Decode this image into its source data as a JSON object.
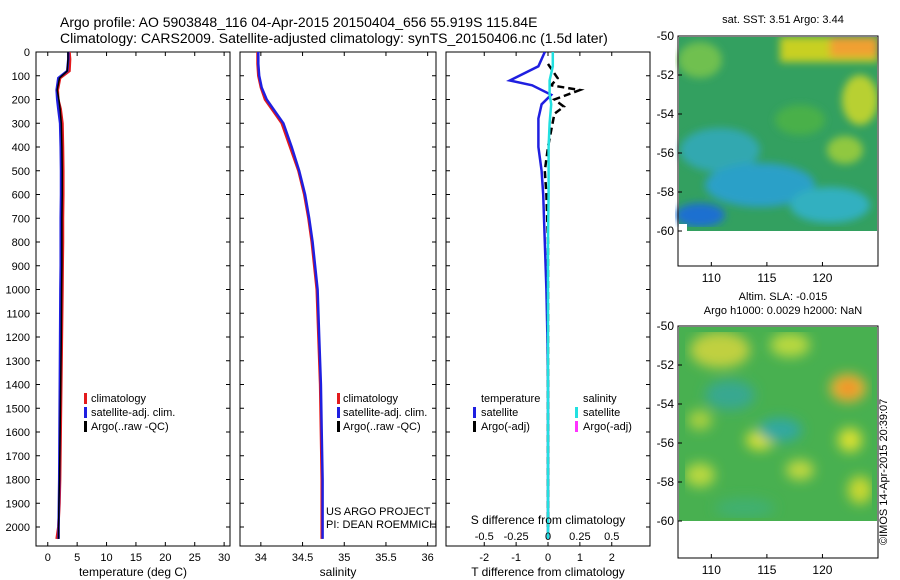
{
  "header": {
    "line1": "Argo profile: AO 5903848_116 04-Apr-2015 20150404_656 55.919S 115.84E",
    "line2": "Climatology: CARS2009. Satellite-adjusted climatology: synTS_20150406.nc (1.5d later)"
  },
  "credit": "©IMOS 14-Apr-2015 20:39:07",
  "project": {
    "line1": "US ARGO PROJECT",
    "line2": "PI: DEAN ROEMMICH"
  },
  "map_labels": {
    "sst": "sat. SST: 3.51  Argo: 3.44",
    "sla": "Altim. SLA: -0.015",
    "height": "Argo h1000: 0.0029 h2000: NaN"
  },
  "colors": {
    "clim": "#e31a1c",
    "sat": "#1f1fe0",
    "argo": "#000000",
    "sat_sal": "#22e0e0",
    "argo_sal": "#ff33ff"
  },
  "chart_data": [
    {
      "type": "line",
      "xlabel": "temperature (deg C)",
      "xlim": [
        -2,
        31
      ],
      "xticks": [
        0,
        5,
        10,
        15,
        20,
        25,
        30
      ],
      "ylim": [
        2080,
        0
      ],
      "yticks": [
        0,
        100,
        200,
        300,
        400,
        500,
        600,
        700,
        800,
        900,
        1000,
        1100,
        1200,
        1300,
        1400,
        1500,
        1600,
        1700,
        1800,
        1900,
        2000
      ],
      "legend": [
        "climatology",
        "satellite-adj. clim.",
        "Argo(..raw -QC)"
      ],
      "series": [
        {
          "name": "climatology",
          "color": "#e31a1c",
          "x": [
            3.7,
            3.8,
            3.7,
            2.1,
            1.7,
            1.8,
            2.2,
            2.5,
            2.6,
            2.65,
            2.65,
            2.6,
            2.6,
            2.55,
            2.5,
            2.4,
            2.3,
            2.2,
            2.1,
            2.0,
            1.8,
            1.5
          ],
          "y": [
            0,
            30,
            80,
            110,
            160,
            200,
            240,
            300,
            400,
            500,
            600,
            700,
            800,
            900,
            1000,
            1200,
            1400,
            1600,
            1800,
            1900,
            2000,
            2050
          ]
        },
        {
          "name": "satellite-adj. clim.",
          "color": "#1f1fe0",
          "x": [
            3.5,
            3.5,
            3.3,
            1.8,
            1.5,
            1.6,
            1.8,
            2.1,
            2.2,
            2.25,
            2.25,
            2.2,
            2.2,
            2.2,
            2.15,
            2.1,
            2.05,
            2.0,
            1.95,
            1.9,
            1.85,
            1.85
          ],
          "y": [
            0,
            30,
            80,
            110,
            160,
            200,
            240,
            300,
            400,
            500,
            600,
            700,
            800,
            900,
            1000,
            1200,
            1400,
            1600,
            1800,
            1900,
            2000,
            2050
          ]
        },
        {
          "name": "Argo",
          "color": "#000000",
          "x": [
            3.44,
            3.44,
            3.3,
            2.0,
            1.6,
            1.9,
            2.1,
            2.3,
            2.4,
            2.45,
            2.45,
            2.4,
            2.4,
            2.4,
            2.35,
            2.3,
            2.2,
            2.1,
            2.0,
            1.9,
            1.85,
            1.85
          ],
          "y": [
            0,
            30,
            80,
            110,
            160,
            200,
            240,
            300,
            400,
            500,
            600,
            700,
            800,
            900,
            1000,
            1200,
            1400,
            1600,
            1800,
            1900,
            2000,
            2050
          ]
        }
      ]
    },
    {
      "type": "line",
      "xlabel": "salinity",
      "xlim": [
        33.75,
        36.1
      ],
      "xticks": [
        34,
        34.5,
        35,
        35.5,
        36
      ],
      "xticklabels": [
        "34",
        "34.5",
        "35",
        "35.5",
        "36"
      ],
      "ylim": [
        2080,
        0
      ],
      "legend": [
        "climatology",
        "satellite-adj. clim.",
        "Argo(..raw -QC)"
      ],
      "series": [
        {
          "name": "climatology",
          "color": "#e31a1c",
          "x": [
            33.96,
            33.96,
            33.97,
            34.0,
            34.05,
            34.15,
            34.25,
            34.35,
            34.45,
            34.52,
            34.57,
            34.61,
            34.64,
            34.67,
            34.69,
            34.71,
            34.72,
            34.73,
            34.73,
            34.73,
            34.73
          ],
          "y": [
            0,
            50,
            100,
            150,
            200,
            250,
            300,
            400,
            500,
            600,
            700,
            800,
            900,
            1000,
            1200,
            1400,
            1600,
            1800,
            1900,
            2000,
            2050
          ]
        },
        {
          "name": "satellite-adj. clim.",
          "color": "#1f1fe0",
          "x": [
            33.97,
            33.97,
            33.98,
            34.01,
            34.07,
            34.17,
            34.27,
            34.37,
            34.46,
            34.53,
            34.58,
            34.62,
            34.65,
            34.68,
            34.7,
            34.72,
            34.73,
            34.74,
            34.74,
            34.74,
            34.74
          ],
          "y": [
            0,
            50,
            100,
            150,
            200,
            250,
            300,
            400,
            500,
            600,
            700,
            800,
            900,
            1000,
            1200,
            1400,
            1600,
            1800,
            1900,
            2000,
            2050
          ]
        }
      ]
    },
    {
      "type": "line",
      "xlabel": "T difference from climatology",
      "xlabel_top": "S difference from climatology",
      "xlim": [
        -3.2,
        3.2
      ],
      "xticks": [
        -2,
        -1,
        0,
        1,
        2
      ],
      "xticks_top": [
        -0.5,
        -0.25,
        0,
        0.25,
        0.5
      ],
      "ylim": [
        2080,
        0
      ],
      "legend_temperature": {
        "title": "temperature",
        "sat": "satellite",
        "argo": "Argo(-adj)"
      },
      "legend_salinity": {
        "title": "salinity",
        "sat": "satellite",
        "argo": "Argo(-adj)"
      },
      "series": [
        {
          "name": "T satellite",
          "color": "#1f1fe0",
          "x": [
            -0.1,
            -0.3,
            -1.2,
            -0.5,
            0.1,
            -0.2,
            -0.3,
            -0.3,
            -0.2,
            -0.15,
            -0.1,
            -0.05,
            -0.02,
            0.0,
            0.0,
            0.0,
            0.0,
            0.0,
            0.0
          ],
          "y": [
            0,
            60,
            120,
            140,
            180,
            220,
            280,
            400,
            500,
            600,
            800,
            1000,
            1200,
            1400,
            1600,
            1800,
            1900,
            2000,
            2050
          ]
        },
        {
          "name": "T Argo",
          "color": "#000000",
          "x": [
            0,
            0.3,
            0.1,
            1.0,
            0.2,
            0.5,
            0.2,
            0.0,
            -0.1,
            -0.05,
            0.0,
            0.0,
            0.0,
            0.0,
            0.0
          ],
          "y": [
            50,
            110,
            140,
            160,
            200,
            230,
            260,
            400,
            500,
            600,
            800,
            1000,
            1400,
            1800,
            2000
          ]
        },
        {
          "name": "S satellite",
          "color": "#22e0e0",
          "x": [
            0.15,
            0.15,
            0.05,
            0.05,
            0.1,
            0.05,
            0.02,
            0.02,
            0.0,
            0.0,
            0.0,
            0.0,
            0.0,
            0.0
          ],
          "y": [
            0,
            60,
            120,
            180,
            220,
            300,
            400,
            600,
            800,
            1000,
            1400,
            1800,
            2000,
            2050
          ]
        }
      ]
    },
    {
      "type": "heatmap",
      "title": "sat. SST: 3.51  Argo: 3.44",
      "xlim": [
        107,
        125
      ],
      "ylim": [
        -60,
        -50
      ],
      "xticks": [
        110,
        115,
        120
      ],
      "yticks": [
        -50,
        -52,
        -54,
        -56,
        -58,
        -60
      ]
    },
    {
      "type": "heatmap",
      "title": "Altim. SLA: -0.015",
      "xlim": [
        107,
        125
      ],
      "ylim": [
        -60,
        -50
      ],
      "xticks": [
        110,
        115,
        120
      ],
      "yticks": [
        -50,
        -52,
        -54,
        -56,
        -58,
        -60
      ]
    }
  ]
}
